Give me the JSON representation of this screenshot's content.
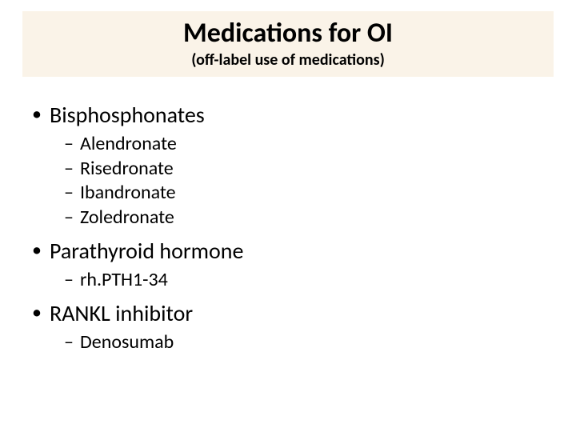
{
  "colors": {
    "background": "#ffffff",
    "title_band": "#faf3e8",
    "text": "#000000"
  },
  "typography": {
    "title_fontsize": 34,
    "subtitle_fontsize": 20,
    "l1_fontsize": 28,
    "l2_fontsize": 24,
    "font_family": "Calibri"
  },
  "header": {
    "title": "Medications for OI",
    "subtitle": "(off-label use of medications)"
  },
  "sections": [
    {
      "label": "Bisphosphonates",
      "items": [
        "Alendronate",
        "Risedronate",
        "Ibandronate",
        "Zoledronate"
      ]
    },
    {
      "label": "Parathyroid hormone",
      "items": [
        "rh.PTH1-34"
      ]
    },
    {
      "label": "RANKL inhibitor",
      "items": [
        "Denosumab"
      ]
    }
  ]
}
